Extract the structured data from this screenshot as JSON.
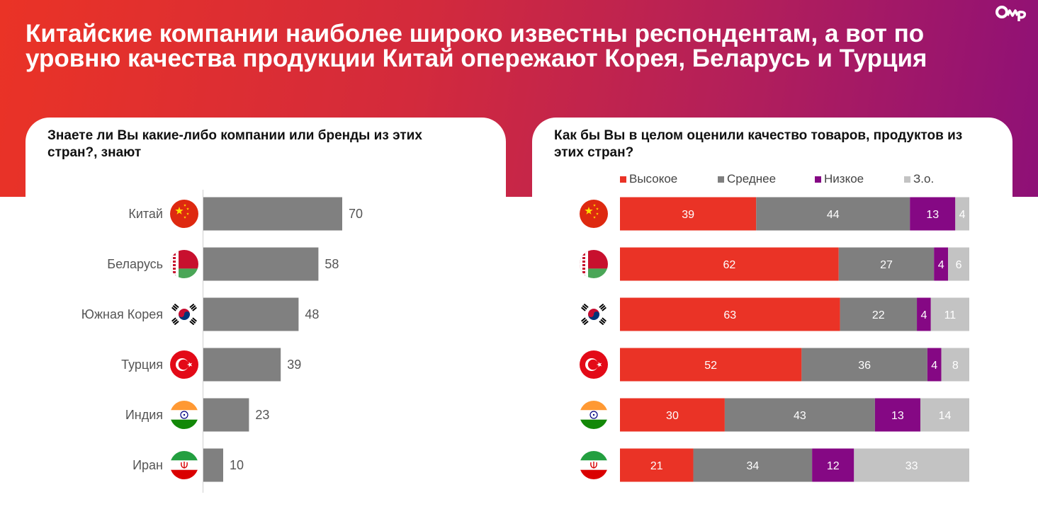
{
  "headline": "Китайские компании наиболее широко известны респондентам, а вот по уровню качества продукции Китай опережают Корея, Беларусь и Турция",
  "colors": {
    "bar_gray": "#808080",
    "high": "#ea3326",
    "medium": "#7f7f7f",
    "low": "#850884",
    "dk": "#c3c3c3"
  },
  "chart_data": [
    {
      "type": "bar",
      "orientation": "horizontal",
      "title": "Знаете ли Вы какие-либо компании или бренды из этих стран?, знают",
      "categories": [
        "Китай",
        "Беларусь",
        "Южная Корея",
        "Турция",
        "Индия",
        "Иран"
      ],
      "flag_icons": [
        "china-flag-icon",
        "belarus-flag-icon",
        "south-korea-flag-icon",
        "turkey-flag-icon",
        "india-flag-icon",
        "iran-flag-icon"
      ],
      "values": [
        70,
        58,
        48,
        39,
        23,
        10
      ],
      "xlim": [
        0,
        100
      ],
      "unit": "%"
    },
    {
      "type": "bar",
      "orientation": "horizontal",
      "stacked": true,
      "title": "Как бы Вы в целом оценили качество товаров, продуктов из этих стран?",
      "categories": [
        "Китай",
        "Беларусь",
        "Южная Корея",
        "Турция",
        "Индия",
        "Иран"
      ],
      "flag_icons": [
        "china-flag-icon",
        "belarus-flag-icon",
        "south-korea-flag-icon",
        "turkey-flag-icon",
        "india-flag-icon",
        "iran-flag-icon"
      ],
      "legend": [
        "Высокое",
        "Среднее",
        "Низкое",
        "З.о."
      ],
      "series": [
        {
          "name": "Высокое",
          "values": [
            39,
            62,
            63,
            52,
            30,
            21
          ]
        },
        {
          "name": "Среднее",
          "values": [
            44,
            27,
            22,
            36,
            43,
            34
          ]
        },
        {
          "name": "Низкое",
          "values": [
            13,
            4,
            4,
            4,
            13,
            12
          ]
        },
        {
          "name": "З.о.",
          "values": [
            4,
            6,
            11,
            8,
            14,
            33
          ]
        }
      ],
      "xlim": [
        0,
        100
      ],
      "unit": "%"
    }
  ]
}
